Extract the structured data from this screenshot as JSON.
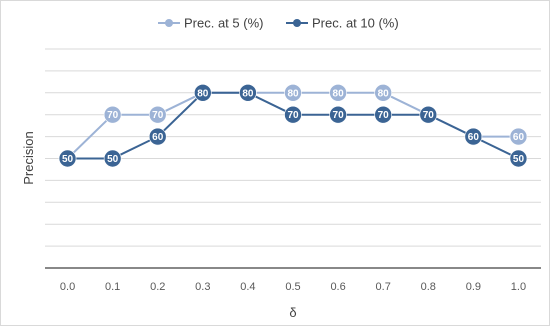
{
  "chart_data": {
    "type": "line",
    "title": "",
    "xlabel": "δ",
    "ylabel": "Precision",
    "categories": [
      "0.0",
      "0.1",
      "0.2",
      "0.3",
      "0.4",
      "0.5",
      "0.6",
      "0.7",
      "0.8",
      "0.9",
      "1.0"
    ],
    "ylim": [
      0,
      100
    ],
    "grid": true,
    "legend_position": "top",
    "series": [
      {
        "name": "Prec. at 5 (%)",
        "color": "#9db3d6",
        "values": [
          50,
          70,
          70,
          80,
          80,
          80,
          80,
          80,
          70,
          60,
          60
        ]
      },
      {
        "name": "Prec. at 10 (%)",
        "color": "#3b6494",
        "values": [
          50,
          50,
          60,
          80,
          80,
          70,
          70,
          70,
          70,
          60,
          50
        ]
      }
    ]
  }
}
